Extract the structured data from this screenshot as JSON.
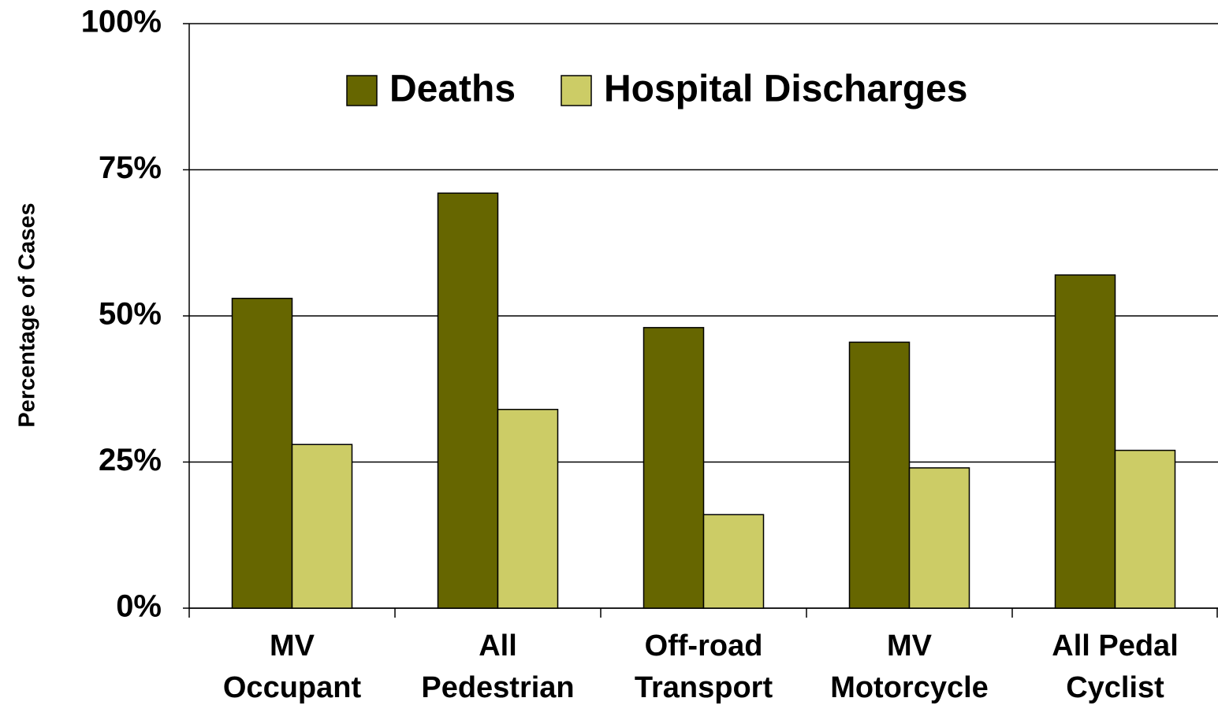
{
  "chart_data": {
    "type": "bar",
    "y_label": "Percentage of Cases",
    "categories": [
      [
        "MV",
        "Occupant"
      ],
      [
        "All",
        "Pedestrian"
      ],
      [
        "Off-road",
        "Transport"
      ],
      [
        "MV",
        "Motorcycle"
      ],
      [
        "All Pedal",
        "Cyclist"
      ]
    ],
    "series": [
      {
        "name": "Deaths",
        "color": "#666600",
        "values": [
          53,
          71,
          48,
          45.5,
          57
        ]
      },
      {
        "name": "Hospital Discharges",
        "color": "#cccc66",
        "values": [
          28,
          34,
          16,
          24,
          27
        ]
      }
    ],
    "ylim": [
      0,
      100
    ],
    "yticks": [
      {
        "value": 0,
        "label": "0%"
      },
      {
        "value": 25,
        "label": "25%"
      },
      {
        "value": 50,
        "label": "50%"
      },
      {
        "value": 75,
        "label": "75%"
      },
      {
        "value": 100,
        "label": "100%"
      }
    ],
    "grid": true,
    "legend": "top"
  }
}
